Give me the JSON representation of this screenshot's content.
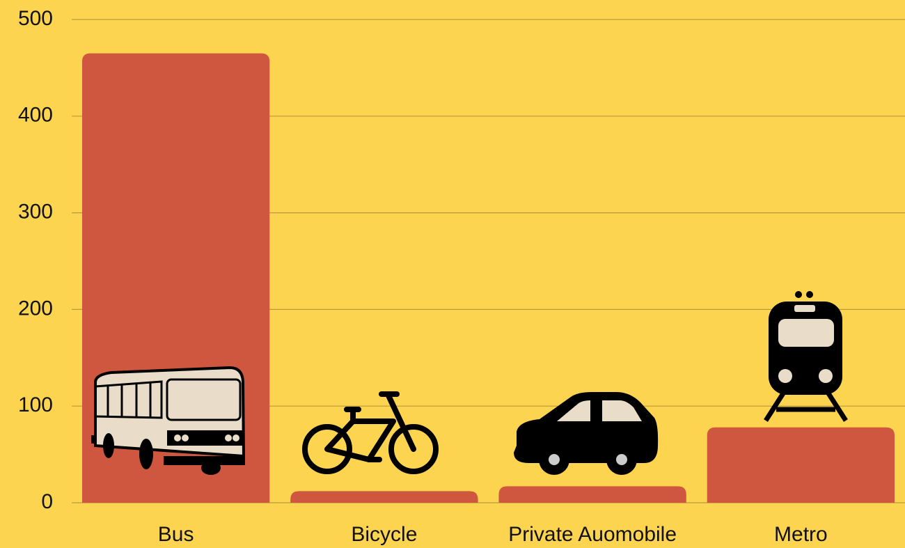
{
  "chart_data": {
    "type": "bar",
    "categories": [
      "Bus",
      "Bicycle",
      "Private Auomobile",
      "Metro"
    ],
    "values": [
      465,
      12,
      17,
      78
    ],
    "color": "#d0573f",
    "ylim": [
      0,
      500
    ],
    "yticks": [
      0,
      100,
      200,
      300,
      400,
      500
    ],
    "grid": true
  }
}
